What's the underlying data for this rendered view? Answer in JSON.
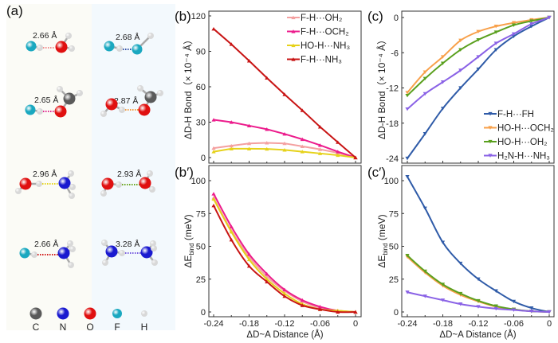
{
  "panel_a": {
    "label": "(a)",
    "pairs": [
      {
        "distance": "2.66 Å",
        "donor": "F-H",
        "acceptor": "OH2",
        "bond_color": "#f08c8c"
      },
      {
        "distance": "2.68 Å",
        "donor": "F-H",
        "acceptor": "FH",
        "bond_color": "#2f4fa8"
      },
      {
        "distance": "2.65 Å",
        "donor": "F-H",
        "acceptor": "OCH2",
        "bond_color": "#e0208c"
      },
      {
        "distance": "2.87 Å",
        "donor": "HO-H",
        "acceptor": "OCH2",
        "bond_color": "#f49a3c"
      },
      {
        "distance": "2.96 Å",
        "donor": "HO-H",
        "acceptor": "NH3",
        "bond_color": "#e6d51e"
      },
      {
        "distance": "2.93 Å",
        "donor": "HO-H",
        "acceptor": "OH2",
        "bond_color": "#6aa61e"
      },
      {
        "distance": "2.66 Å",
        "donor": "F-H",
        "acceptor": "NH3",
        "bond_color": "#d21c1c"
      },
      {
        "distance": "3.28 Å",
        "donor": "H2N-H",
        "acceptor": "NH3",
        "bond_color": "#7a5ee0"
      }
    ],
    "atom_legend": [
      {
        "symbol": "C",
        "color": "#5a5a5a"
      },
      {
        "symbol": "N",
        "color": "#1a1ad0"
      },
      {
        "symbol": "O",
        "color": "#e01010"
      },
      {
        "symbol": "F",
        "color": "#1aa8c0"
      },
      {
        "symbol": "H",
        "color": "#d8d8d8"
      }
    ]
  },
  "chart_data": [
    {
      "id": "b",
      "label": "(b)",
      "type": "line",
      "xlabel": "",
      "ylabel": "ΔD-H Bond（× 10⁻⁴ Å）",
      "ylim": [
        0,
        120
      ],
      "yticks": [
        "0",
        "30",
        "60",
        "90",
        "120"
      ],
      "xlim": [
        -0.24,
        0
      ],
      "legend_position": "top-right",
      "x": [
        -0.24,
        -0.21,
        -0.18,
        -0.15,
        -0.12,
        -0.09,
        -0.06,
        -0.03,
        0
      ],
      "series": [
        {
          "name": "F-H···OH₂",
          "color": "#f4a0a0",
          "marker": "triangle-up",
          "values": [
            8,
            10,
            12,
            12.5,
            12,
            9.5,
            7,
            4,
            0
          ]
        },
        {
          "name": "F-H···OCH₂",
          "color": "#ec1c8c",
          "marker": "triangle-up",
          "values": [
            32,
            30,
            27,
            24,
            20,
            15.5,
            10.5,
            5,
            0
          ]
        },
        {
          "name": "HO-H···NH₃",
          "color": "#e6d21a",
          "marker": "triangle-up",
          "values": [
            5,
            7.5,
            7.5,
            7.3,
            6.5,
            5,
            3.5,
            2,
            0
          ]
        },
        {
          "name": "F-H···NH₃",
          "color": "#c81414",
          "marker": "triangle-up",
          "values": [
            109,
            96,
            82,
            67.5,
            53.5,
            40,
            26,
            13,
            0
          ]
        }
      ]
    },
    {
      "id": "b_prime",
      "label": "(b′)",
      "type": "line",
      "xlabel": "ΔD~A Distance (Å)",
      "ylabel": "ΔE_bind (meV)",
      "ylim": [
        -5,
        115
      ],
      "yticks": [
        "0",
        "25",
        "50",
        "75",
        "100"
      ],
      "xlim": [
        -0.24,
        0
      ],
      "xticks": [
        "-0.24",
        "-0.18",
        "-0.12",
        "-0.06",
        "0"
      ],
      "x": [
        -0.24,
        -0.21,
        -0.18,
        -0.15,
        -0.12,
        -0.09,
        -0.06,
        -0.03,
        0
      ],
      "series": [
        {
          "name": "F-H···OH₂",
          "color": "#f4a0a0",
          "marker": "triangle-up",
          "values": [
            87,
            62,
            42,
            27,
            16,
            8,
            3,
            1,
            0
          ]
        },
        {
          "name": "F-H···OCH₂",
          "color": "#ec1c8c",
          "marker": "triangle-up",
          "values": [
            90,
            65,
            44,
            29,
            17,
            9,
            4,
            1,
            0
          ]
        },
        {
          "name": "HO-H···NH₃",
          "color": "#e6d21a",
          "marker": "triangle-up",
          "values": [
            86,
            61,
            40,
            25,
            14,
            6,
            2,
            1,
            0
          ]
        },
        {
          "name": "F-H···NH₃",
          "color": "#c81414",
          "marker": "triangle-up",
          "values": [
            81,
            55,
            35,
            23,
            12,
            5,
            2,
            0,
            0
          ]
        }
      ]
    },
    {
      "id": "c",
      "label": "(c)",
      "type": "line",
      "xlabel": "",
      "ylabel": "ΔD-H Bond（× 10⁻⁴ Å）",
      "ylim": [
        -24,
        0
      ],
      "yticks": [
        "-24",
        "-18",
        "-12",
        "-6",
        "0"
      ],
      "xlim": [
        -0.24,
        0
      ],
      "legend_position": "bottom-right",
      "x": [
        -0.24,
        -0.21,
        -0.18,
        -0.15,
        -0.12,
        -0.09,
        -0.06,
        -0.03,
        0
      ],
      "series": [
        {
          "name": "F-H···FH",
          "color": "#2f5ba8",
          "marker": "triangle-down",
          "values": [
            -24,
            -19.8,
            -15.5,
            -12,
            -8.8,
            -5.5,
            -3.2,
            -1.5,
            0
          ]
        },
        {
          "name": "HO-H···OCH₂",
          "color": "#f8a04a",
          "marker": "triangle-down",
          "values": [
            -12.8,
            -9.3,
            -6.7,
            -3.9,
            -2.4,
            -1.5,
            -0.9,
            -0.4,
            0
          ]
        },
        {
          "name": "HO-H···OH₂",
          "color": "#5aa01e",
          "marker": "triangle-down",
          "values": [
            -13.3,
            -10.4,
            -7.8,
            -5.5,
            -3.8,
            -2.5,
            -1.3,
            -0.6,
            0
          ]
        },
        {
          "name": "H₂N-H···NH₃",
          "color": "#8a62e6",
          "marker": "triangle-down",
          "values": [
            -15.6,
            -13,
            -11,
            -9,
            -6.7,
            -4.4,
            -2.8,
            -1.1,
            0
          ]
        }
      ]
    },
    {
      "id": "c_prime",
      "label": "(c′)",
      "type": "line",
      "xlabel": "ΔD~A Distance (Å)",
      "ylabel": "ΔE_bind (meV)",
      "ylim": [
        -5,
        115
      ],
      "yticks": [
        "0",
        "25",
        "50",
        "75",
        "100"
      ],
      "xlim": [
        -0.24,
        0
      ],
      "xticks": [
        "-0.24",
        "-0.18",
        "-0.12",
        "-0.06",
        "0"
      ],
      "x": [
        -0.24,
        -0.21,
        -0.18,
        -0.15,
        -0.12,
        -0.09,
        -0.06,
        -0.03,
        0
      ],
      "series": [
        {
          "name": "F-H···FH",
          "color": "#2f5ba8",
          "marker": "triangle-down",
          "values": [
            103,
            79,
            53,
            37,
            25,
            16,
            8,
            3,
            0
          ]
        },
        {
          "name": "HO-H···OCH₂",
          "color": "#f8a04a",
          "marker": "triangle-down",
          "values": [
            42,
            30,
            20,
            13,
            8,
            4,
            2,
            0.5,
            0
          ]
        },
        {
          "name": "HO-H···OH₂",
          "color": "#5aa01e",
          "marker": "triangle-down",
          "values": [
            43,
            31,
            21,
            14,
            8.5,
            4.5,
            2,
            0.5,
            0
          ]
        },
        {
          "name": "H₂N-H···NH₃",
          "color": "#8a62e6",
          "marker": "triangle-down",
          "values": [
            15,
            12,
            9,
            6,
            4,
            2.5,
            1.5,
            0.5,
            0
          ]
        }
      ]
    }
  ]
}
